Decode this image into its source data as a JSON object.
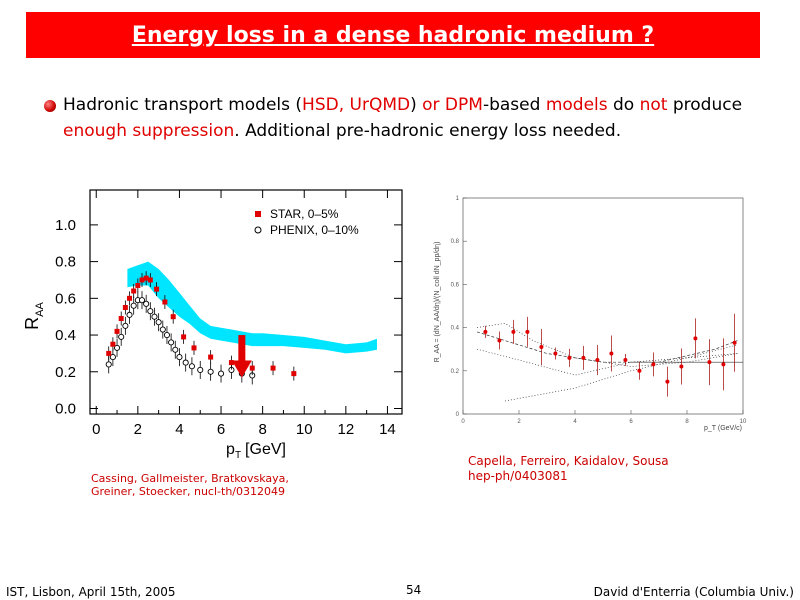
{
  "title": "Energy loss in a dense hadronic medium ?",
  "bullet": {
    "p1": "Hadronic transport models (",
    "p2": "HSD, UrQMD",
    "p3": ") ",
    "p4": "or DPM",
    "p5": "-based ",
    "p6": "models",
    "p7": " do ",
    "p8": "not",
    "p9": " produce ",
    "p10": "enough suppression",
    "p11": ". Additional pre-hadronic energy loss needed."
  },
  "colors": {
    "title_bg": "#ff0000",
    "accent": "#e00000",
    "band": "#00e5ff"
  },
  "chart_data": [
    {
      "type": "scatter",
      "ylabel": "R",
      "ylabel_sub": "AA",
      "xlabel": "p",
      "xlabel_sub": "T",
      "xlabel_unit": "[GeV]",
      "x_ticks": [
        "0",
        "2",
        "4",
        "6",
        "8",
        "10",
        "12",
        "14"
      ],
      "y_ticks": [
        "0.0",
        "0.2",
        "0.4",
        "0.6",
        "0.8",
        "1.0"
      ],
      "xlim": [
        -0.3,
        14.7
      ],
      "ylim": [
        -0.03,
        1.19
      ],
      "legend": [
        {
          "label": "STAR, 0–5%",
          "marker": "filled-square",
          "color": "#e00000"
        },
        {
          "label": "PHENIX, 0–10%",
          "marker": "open-circle",
          "color": "#000000"
        }
      ],
      "series": [
        {
          "name": "STAR, 0–5%",
          "x": [
            0.6,
            0.8,
            1.0,
            1.2,
            1.4,
            1.6,
            1.8,
            2.0,
            2.2,
            2.4,
            2.6,
            2.9,
            3.3,
            3.7,
            4.2,
            4.7,
            5.5,
            6.5,
            7.5,
            8.5,
            9.5
          ],
          "y": [
            0.3,
            0.35,
            0.42,
            0.49,
            0.55,
            0.6,
            0.64,
            0.67,
            0.7,
            0.71,
            0.7,
            0.65,
            0.58,
            0.5,
            0.39,
            0.33,
            0.28,
            0.25,
            0.22,
            0.22,
            0.19
          ]
        },
        {
          "name": "PHENIX, 0–10%",
          "x": [
            0.6,
            0.8,
            1.0,
            1.2,
            1.4,
            1.6,
            1.8,
            2.0,
            2.2,
            2.4,
            2.6,
            2.8,
            3.0,
            3.2,
            3.4,
            3.6,
            3.8,
            4.0,
            4.3,
            4.6,
            5.0,
            5.5,
            6.0,
            6.5,
            7.0,
            7.5
          ],
          "y": [
            0.24,
            0.28,
            0.33,
            0.39,
            0.45,
            0.51,
            0.56,
            0.59,
            0.59,
            0.57,
            0.53,
            0.5,
            0.47,
            0.43,
            0.4,
            0.36,
            0.32,
            0.28,
            0.25,
            0.23,
            0.21,
            0.2,
            0.19,
            0.21,
            0.19,
            0.18
          ]
        }
      ],
      "band": {
        "x": [
          1.5,
          2.0,
          2.5,
          3.0,
          3.5,
          4.0,
          4.5,
          5.0,
          5.5,
          6.0,
          6.5,
          7.0,
          7.5,
          8.0,
          9.0,
          10.0,
          11.0,
          12.0,
          13.0,
          13.5
        ],
        "y_low": [
          0.66,
          0.67,
          0.67,
          0.6,
          0.55,
          0.5,
          0.46,
          0.41,
          0.38,
          0.37,
          0.36,
          0.35,
          0.34,
          0.34,
          0.34,
          0.33,
          0.32,
          0.3,
          0.31,
          0.32
        ],
        "y_high": [
          0.76,
          0.78,
          0.8,
          0.76,
          0.7,
          0.63,
          0.56,
          0.49,
          0.45,
          0.44,
          0.43,
          0.42,
          0.41,
          0.41,
          0.4,
          0.39,
          0.37,
          0.35,
          0.36,
          0.38
        ]
      },
      "arrow_x": 7.0,
      "arrow_y": [
        0.4,
        0.18
      ]
    },
    {
      "type": "scatter",
      "ylabel": "R_AA = (dN_AA/dη)/(N_coll dN_pp/dη)",
      "xlabel": "p_T (GeV/c)",
      "x_ticks": [
        "0",
        "2",
        "4",
        "6",
        "8",
        "10"
      ],
      "y_ticks": [
        "0",
        "0.2",
        "0.4",
        "0.6",
        "0.8",
        "1"
      ],
      "xlim": [
        0,
        10
      ],
      "ylim": [
        0,
        1
      ],
      "series": [
        {
          "name": "data",
          "x": [
            0.8,
            1.3,
            1.8,
            2.3,
            2.8,
            3.3,
            3.8,
            4.3,
            4.8,
            5.3,
            5.8,
            6.3,
            6.8,
            7.3,
            7.8,
            8.3,
            8.8,
            9.3,
            9.7
          ],
          "y": [
            0.38,
            0.34,
            0.38,
            0.38,
            0.31,
            0.28,
            0.26,
            0.26,
            0.25,
            0.28,
            0.25,
            0.2,
            0.23,
            0.15,
            0.22,
            0.35,
            0.24,
            0.23,
            0.33
          ]
        }
      ]
    }
  ],
  "cite_left": {
    "line1": "Cassing, Gallmeister, Bratkovskaya,",
    "line2": "Greiner, Stoecker, nucl-th/0312049"
  },
  "cite_right": {
    "line1": "Capella, Ferreiro, Kaidalov, Sousa",
    "line2": "hep-ph/0403081"
  },
  "footer": {
    "left": "IST, Lisbon, April 15th, 2005",
    "page": "54",
    "right": "David d'Enterria (Columbia Univ.)"
  }
}
